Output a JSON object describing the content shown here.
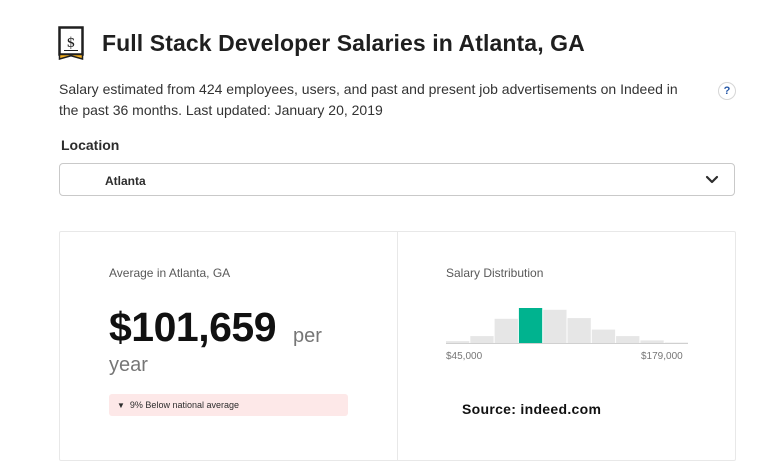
{
  "header": {
    "title": "Full Stack Developer Salaries in Atlanta, GA",
    "icon": "salary-document-icon"
  },
  "description": "Salary estimated from 424 employees, users, and past and present job advertisements on Indeed in the past 36 months. Last updated: January 20, 2019",
  "help_label": "?",
  "location": {
    "label": "Location",
    "selected": "Atlanta"
  },
  "average": {
    "label": "Average in Atlanta, GA",
    "amount": "$101,659",
    "per": "per",
    "period": "year",
    "comparison": "9% Below national average"
  },
  "distribution": {
    "label": "Salary Distribution",
    "min_label": "$45,000",
    "max_label": "$179,000",
    "bars": [
      0.08,
      0.22,
      0.7,
      1.0,
      0.95,
      0.72,
      0.4,
      0.22,
      0.1,
      0.04
    ],
    "highlight_index": 3,
    "highlight_color": "#00b38f",
    "bar_color": "#e6e6e6"
  },
  "source": "Source: indeed.com"
}
